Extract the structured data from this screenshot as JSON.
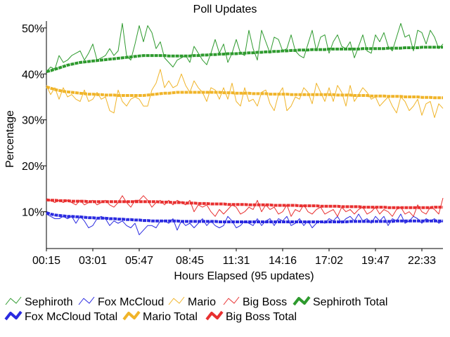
{
  "chart_data": {
    "type": "line",
    "title": "Poll Updates",
    "xlabel": "Hours Elapsed (95 updates)",
    "ylabel": "Percentage",
    "x_ticks": [
      "00:15",
      "03:01",
      "05:47",
      "08:45",
      "11:31",
      "14:16",
      "17:02",
      "19:47",
      "22:33"
    ],
    "x_tick_index": [
      0,
      11,
      22,
      34,
      45,
      56,
      67,
      78,
      89
    ],
    "y_ticks": [
      "10%",
      "20%",
      "30%",
      "40%",
      "50%"
    ],
    "y_tick_values": [
      10,
      20,
      30,
      40,
      50
    ],
    "ylim": [
      2,
      51.5
    ],
    "n_updates": 95,
    "grid": false,
    "legend_position": "bottom",
    "series": [
      {
        "name": "Sephiroth",
        "color": "#2e9a2e",
        "style": "thin",
        "values": [
          40.5,
          41.5,
          41,
          44,
          42.5,
          43,
          44,
          44.5,
          45,
          43,
          44.5,
          46.5,
          43,
          43.5,
          44,
          45.5,
          44,
          45,
          51,
          44,
          43,
          46.5,
          50.5,
          47,
          50.5,
          49,
          45.5,
          47,
          43.5,
          42.5,
          41.5,
          43,
          43.5,
          44,
          42.5,
          46,
          44.5,
          43,
          42,
          44.5,
          47.5,
          44.5,
          46.5,
          42.5,
          44.5,
          47.5,
          44.5,
          44,
          49.5,
          45.5,
          43,
          49.5,
          47,
          44.5,
          48,
          47.5,
          45,
          45.5,
          48.5,
          45,
          44,
          43.5,
          46.5,
          49.5,
          45,
          48,
          48.5,
          44.5,
          47,
          48.5,
          46,
          45.5,
          47,
          43.5,
          46,
          48.5,
          45,
          44.5,
          48.5,
          47,
          49,
          46,
          45,
          48,
          51,
          48,
          48.5,
          45,
          49.5,
          49,
          46.5,
          49.5,
          48,
          45.5,
          46.5
        ]
      },
      {
        "name": "Fox McCloud",
        "color": "#2a2ae0",
        "style": "thin",
        "values": [
          9.5,
          9,
          8.5,
          8.5,
          9,
          8.5,
          9,
          7.5,
          9,
          8,
          6.5,
          7,
          8.5,
          9,
          8.5,
          7,
          8,
          7.5,
          8,
          7,
          6.5,
          7.5,
          5,
          6,
          7,
          7,
          6.5,
          8,
          8,
          7.5,
          8.5,
          6,
          8,
          7,
          7.5,
          6.5,
          7.5,
          8.5,
          7,
          8,
          7,
          6.5,
          7,
          9,
          8,
          6.5,
          7,
          8,
          7.5,
          7,
          8.5,
          7,
          8,
          8.5,
          7,
          8.5,
          8,
          9,
          7,
          7.5,
          8.5,
          7,
          8,
          6.5,
          7.5,
          8,
          7.5,
          8.5,
          8,
          9,
          7.5,
          8.5,
          9,
          8,
          9.5,
          8,
          8.5,
          7.5,
          9,
          8,
          9,
          7,
          8.5,
          8,
          9.5,
          7.5,
          8,
          9,
          8.5,
          7.5,
          8.5,
          8,
          8.5,
          7.5,
          8
        ]
      },
      {
        "name": "Mario",
        "color": "#f0b429",
        "style": "thin",
        "values": [
          37.5,
          35.5,
          37,
          34.5,
          37,
          35,
          35.5,
          34.5,
          34,
          36.5,
          34,
          34.5,
          36,
          34.5,
          35,
          32,
          31.5,
          36.5,
          34,
          33,
          34.5,
          35,
          34.5,
          33,
          33,
          36.5,
          38,
          41,
          37,
          38.5,
          37,
          37.5,
          40,
          37.5,
          36,
          38.5,
          37,
          36,
          34,
          37,
          36.5,
          34.5,
          37,
          34.5,
          38,
          34,
          33,
          37,
          34,
          34.5,
          33,
          36,
          36.5,
          33.5,
          32,
          35.5,
          37,
          32,
          33,
          35,
          34.5,
          37,
          36,
          33.5,
          38,
          36,
          34,
          37,
          34,
          37.5,
          36,
          33,
          37.5,
          34,
          35.5,
          37,
          36,
          34.5,
          35,
          33,
          34,
          35,
          33,
          31.5,
          35,
          34,
          32,
          33,
          34.5,
          31,
          33.5,
          34,
          30.5,
          33.5,
          32.5
        ]
      },
      {
        "name": "Big Boss",
        "color": "#e83030",
        "style": "thin",
        "values": [
          12.5,
          12.5,
          12,
          12.5,
          12,
          12.5,
          12,
          11.5,
          12.5,
          11.5,
          12,
          12.5,
          11.5,
          12,
          12.5,
          11.5,
          11,
          12,
          13.5,
          12,
          11,
          12.5,
          12.5,
          13.5,
          12.5,
          11,
          12,
          12.5,
          11.5,
          12.5,
          11.5,
          12.5,
          12,
          11.5,
          12.5,
          10,
          11.5,
          11,
          11.5,
          10,
          9,
          10.5,
          9.5,
          10.5,
          11.5,
          11,
          9.5,
          10,
          11,
          10.5,
          12.5,
          10,
          11.5,
          10.5,
          11,
          9.5,
          10,
          11.5,
          9,
          10.5,
          10,
          11.5,
          10,
          9.5,
          10.5,
          11,
          9.5,
          10,
          10.5,
          9,
          11,
          10,
          10.5,
          9.5,
          10.5,
          11,
          9.5,
          10,
          11,
          9.5,
          10.5,
          10,
          9,
          10.5,
          11,
          9.5,
          10,
          9,
          11.5,
          10,
          9.5,
          11,
          10.5,
          9.5,
          13
        ]
      },
      {
        "name": "Sephiroth Total",
        "color": "#2e9a2e",
        "style": "thick",
        "values": [
          40.5,
          40.7,
          41.0,
          41.3,
          41.6,
          41.9,
          42.1,
          42.3,
          42.5,
          42.6,
          42.7,
          42.8,
          42.9,
          43.0,
          43.1,
          43.2,
          43.3,
          43.4,
          43.5,
          43.6,
          43.7,
          43.8,
          43.9,
          44.0,
          44.0,
          44.0,
          44.0,
          44.0,
          44.0,
          43.9,
          43.9,
          43.9,
          43.9,
          43.9,
          43.9,
          44.0,
          44.0,
          44.1,
          44.1,
          44.2,
          44.2,
          44.3,
          44.3,
          44.4,
          44.4,
          44.4,
          44.5,
          44.5,
          44.6,
          44.6,
          44.7,
          44.7,
          44.8,
          44.8,
          44.9,
          44.9,
          45.0,
          45.0,
          45.1,
          45.1,
          45.2,
          45.2,
          45.2,
          45.3,
          45.3,
          45.3,
          45.3,
          45.4,
          45.4,
          45.4,
          45.4,
          45.4,
          45.4,
          45.4,
          45.4,
          45.5,
          45.5,
          45.5,
          45.5,
          45.5,
          45.5,
          45.6,
          45.6,
          45.6,
          45.6,
          45.7,
          45.7,
          45.7,
          45.7,
          45.8,
          45.8,
          45.8,
          45.8,
          45.8,
          45.8
        ]
      },
      {
        "name": "Fox McCloud Total",
        "color": "#2a2ae0",
        "style": "thick",
        "values": [
          9.8,
          9.5,
          9.3,
          9.2,
          9.1,
          9.0,
          9.0,
          8.9,
          8.9,
          8.8,
          8.7,
          8.7,
          8.6,
          8.6,
          8.6,
          8.5,
          8.5,
          8.4,
          8.4,
          8.3,
          8.3,
          8.2,
          8.2,
          8.1,
          8.1,
          8.0,
          8.0,
          8.0,
          8.0,
          8.0,
          8.0,
          8.0,
          7.9,
          7.9,
          7.9,
          7.9,
          7.9,
          7.9,
          7.9,
          7.9,
          7.9,
          7.8,
          7.8,
          7.8,
          7.8,
          7.8,
          7.8,
          7.8,
          7.8,
          7.8,
          7.8,
          7.8,
          7.8,
          7.8,
          7.8,
          7.8,
          7.8,
          7.8,
          7.8,
          7.8,
          7.8,
          7.8,
          7.8,
          7.8,
          7.8,
          7.8,
          7.8,
          7.8,
          7.8,
          7.8,
          7.8,
          7.8,
          7.9,
          7.9,
          7.9,
          7.9,
          7.9,
          7.9,
          7.9,
          7.9,
          7.9,
          7.9,
          7.9,
          8.0,
          8.0,
          8.0,
          8.0,
          8.0,
          8.0,
          8.0,
          8.0,
          8.0,
          8.0,
          8.0,
          8.0
        ]
      },
      {
        "name": "Mario Total",
        "color": "#f0b429",
        "style": "thick",
        "values": [
          37.2,
          36.9,
          36.6,
          36.4,
          36.2,
          36.1,
          36.0,
          35.9,
          35.8,
          35.7,
          35.6,
          35.6,
          35.5,
          35.5,
          35.4,
          35.4,
          35.4,
          35.3,
          35.3,
          35.3,
          35.3,
          35.3,
          35.3,
          35.3,
          35.4,
          35.5,
          35.6,
          35.7,
          35.8,
          35.8,
          35.9,
          36.0,
          36.0,
          36.0,
          36.0,
          36.0,
          36.0,
          36.0,
          36.0,
          36.0,
          36.0,
          36.0,
          35.9,
          35.9,
          35.9,
          35.8,
          35.8,
          35.8,
          35.8,
          35.7,
          35.7,
          35.7,
          35.7,
          35.6,
          35.6,
          35.6,
          35.6,
          35.6,
          35.5,
          35.5,
          35.5,
          35.5,
          35.5,
          35.5,
          35.5,
          35.5,
          35.5,
          35.5,
          35.5,
          35.4,
          35.4,
          35.4,
          35.4,
          35.3,
          35.3,
          35.3,
          35.3,
          35.2,
          35.2,
          35.2,
          35.2,
          35.1,
          35.1,
          35.1,
          35.1,
          35.0,
          35.0,
          35.0,
          35.0,
          34.9,
          34.9,
          34.9,
          34.8,
          34.8,
          34.8
        ]
      },
      {
        "name": "Big Boss Total",
        "color": "#e83030",
        "style": "thick",
        "values": [
          12.6,
          12.5,
          12.5,
          12.4,
          12.4,
          12.4,
          12.3,
          12.3,
          12.3,
          12.3,
          12.2,
          12.2,
          12.2,
          12.2,
          12.2,
          12.2,
          12.2,
          12.2,
          12.2,
          12.2,
          12.2,
          12.2,
          12.2,
          12.2,
          12.2,
          12.2,
          12.2,
          12.1,
          12.1,
          12.1,
          12.0,
          12.0,
          12.0,
          11.9,
          11.9,
          11.9,
          11.8,
          11.8,
          11.8,
          11.7,
          11.7,
          11.7,
          11.7,
          11.6,
          11.6,
          11.6,
          11.6,
          11.6,
          11.5,
          11.5,
          11.5,
          11.5,
          11.5,
          11.5,
          11.4,
          11.4,
          11.4,
          11.4,
          11.4,
          11.4,
          11.3,
          11.3,
          11.3,
          11.3,
          11.3,
          11.2,
          11.2,
          11.2,
          11.2,
          11.2,
          11.1,
          11.1,
          11.1,
          11.1,
          11.1,
          11.0,
          11.0,
          11.0,
          11.0,
          11.0,
          11.0,
          10.9,
          10.9,
          10.9,
          10.9,
          10.9,
          10.9,
          10.9,
          10.9,
          10.9,
          10.9,
          10.9,
          11.0,
          11.0,
          11.0
        ]
      }
    ]
  }
}
